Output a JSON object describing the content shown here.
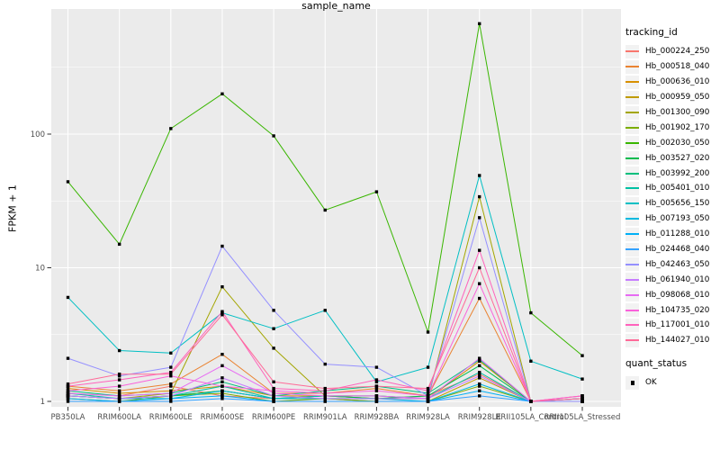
{
  "chart_data": {
    "type": "line",
    "title": "",
    "xlabel": "sample_name",
    "ylabel": "FPKM + 1",
    "y_scale": "log10",
    "y_ticks": [
      1,
      10,
      100
    ],
    "y_minor_gridlines": [
      3.162,
      31.62,
      316.2
    ],
    "ylim": [
      0.91,
      860
    ],
    "legend_title": "tracking_id",
    "legend_position": "right",
    "grid": "on",
    "panel_bg": "#EBEBEB",
    "grid_color": "#FFFFFF",
    "marker": "black-square",
    "marker_color": "#000000",
    "axis_text_color": "#4D4D4D",
    "categories": [
      "PB350LA",
      "RRIM600LA",
      "RRIM600LE",
      "RRIM600SE",
      "RRIM600PE",
      "RRIM901LA",
      "RRIM928BA",
      "RRIM928LA",
      "RRIM928LE",
      "RRII105LA_Control",
      "RRII105LA_Stressed"
    ],
    "series": [
      {
        "name": "Hb_000224_250",
        "color": "#F8766D",
        "values": [
          1.15,
          1.1,
          1.3,
          1.1,
          1.05,
          1.1,
          1.05,
          1.1,
          1.6,
          1.0,
          1.05
        ]
      },
      {
        "name": "Hb_000518_040",
        "color": "#EA8331",
        "values": [
          1.3,
          1.2,
          1.35,
          2.25,
          1.15,
          1.15,
          1.25,
          1.1,
          5.9,
          1.0,
          1.0
        ]
      },
      {
        "name": "Hb_000636_010",
        "color": "#D89000",
        "values": [
          1.25,
          1.15,
          1.2,
          1.3,
          1.1,
          1.1,
          1.1,
          1.05,
          2.0,
          1.0,
          1.0
        ]
      },
      {
        "name": "Hb_000959_050",
        "color": "#C09B00",
        "values": [
          1.1,
          1.05,
          1.1,
          1.2,
          1.05,
          1.05,
          1.0,
          1.0,
          1.5,
          1.0,
          1.0
        ]
      },
      {
        "name": "Hb_001300_090",
        "color": "#A3A500",
        "values": [
          1.1,
          1.05,
          1.15,
          7.2,
          2.5,
          1.1,
          1.05,
          1.05,
          34.0,
          1.0,
          1.0
        ]
      },
      {
        "name": "Hb_001902_170",
        "color": "#7CAE00",
        "values": [
          1.05,
          1.0,
          1.1,
          1.15,
          1.0,
          1.05,
          1.0,
          1.0,
          1.3,
          1.0,
          1.0
        ]
      },
      {
        "name": "Hb_002030_050",
        "color": "#39B600",
        "values": [
          44.0,
          15.0,
          110.0,
          200.0,
          97.0,
          27.0,
          37.0,
          3.3,
          670.0,
          4.6,
          2.2
        ]
      },
      {
        "name": "Hb_003527_020",
        "color": "#00BB4E",
        "values": [
          1.1,
          1.05,
          1.1,
          1.2,
          1.05,
          1.1,
          1.05,
          1.1,
          1.85,
          1.0,
          1.05
        ]
      },
      {
        "name": "Hb_003992_200",
        "color": "#00BF7D",
        "values": [
          1.2,
          1.1,
          1.15,
          1.4,
          1.1,
          1.2,
          1.3,
          1.15,
          2.05,
          1.0,
          1.05
        ]
      },
      {
        "name": "Hb_005401_010",
        "color": "#00C1A3",
        "values": [
          1.15,
          1.05,
          1.1,
          1.3,
          1.05,
          1.1,
          1.1,
          1.05,
          1.65,
          1.0,
          1.0
        ]
      },
      {
        "name": "Hb_005656_150",
        "color": "#00BFC4",
        "values": [
          6.0,
          2.4,
          2.3,
          4.6,
          3.5,
          4.8,
          1.4,
          1.8,
          49.0,
          2.0,
          1.47
        ]
      },
      {
        "name": "Hb_007193_050",
        "color": "#00BAE0",
        "values": [
          1.1,
          1.05,
          1.05,
          1.2,
          1.05,
          1.05,
          1.05,
          1.0,
          1.35,
          1.0,
          1.0
        ]
      },
      {
        "name": "Hb_011288_010",
        "color": "#00B0F6",
        "values": [
          1.05,
          1.0,
          1.05,
          1.1,
          1.0,
          1.0,
          1.0,
          1.0,
          1.2,
          1.0,
          1.0
        ]
      },
      {
        "name": "Hb_024468_040",
        "color": "#35A2FF",
        "values": [
          1.0,
          1.0,
          1.0,
          1.05,
          1.0,
          1.0,
          1.0,
          1.0,
          1.1,
          1.0,
          1.0
        ]
      },
      {
        "name": "Hb_042463_050",
        "color": "#9590FF",
        "values": [
          2.1,
          1.55,
          1.8,
          14.5,
          4.8,
          1.9,
          1.8,
          1.1,
          23.7,
          1.0,
          1.0
        ]
      },
      {
        "name": "Hb_061940_010",
        "color": "#C77CFF",
        "values": [
          1.1,
          1.05,
          1.1,
          1.5,
          1.1,
          1.05,
          1.05,
          1.05,
          1.55,
          1.0,
          1.05
        ]
      },
      {
        "name": "Hb_098068_010",
        "color": "#E76BF3",
        "values": [
          1.15,
          1.1,
          1.15,
          1.85,
          1.15,
          1.1,
          1.1,
          1.05,
          2.1,
          1.0,
          1.1
        ]
      },
      {
        "name": "Hb_104735_020",
        "color": "#FA62DB",
        "values": [
          1.2,
          1.3,
          1.55,
          1.3,
          1.2,
          1.15,
          1.2,
          1.1,
          7.6,
          1.0,
          1.1
        ]
      },
      {
        "name": "Hb_117001_010",
        "color": "#FF62BC",
        "values": [
          1.3,
          1.45,
          1.65,
          4.7,
          1.25,
          1.2,
          1.45,
          1.2,
          13.5,
          1.0,
          1.1
        ]
      },
      {
        "name": "Hb_144027_010",
        "color": "#FF6A98",
        "values": [
          1.35,
          1.6,
          1.6,
          4.45,
          1.4,
          1.25,
          1.3,
          1.25,
          10.0,
          1.0,
          1.05
        ]
      }
    ],
    "quant_legend": {
      "title": "quant_status",
      "items": [
        {
          "label": "OK",
          "marker": "black-square"
        }
      ]
    }
  }
}
